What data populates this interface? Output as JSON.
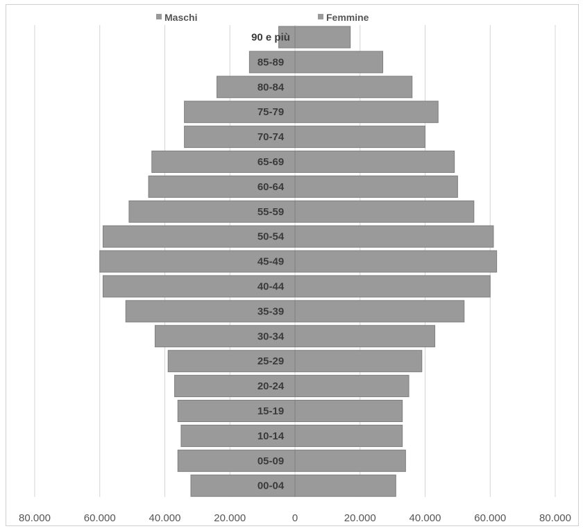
{
  "chart_data": {
    "type": "bar",
    "orientation": "horizontal",
    "variant": "population-pyramid",
    "categories": [
      "90 e più",
      "85-89",
      "80-84",
      "75-79",
      "70-74",
      "65-69",
      "60-64",
      "55-59",
      "50-54",
      "45-49",
      "40-44",
      "35-39",
      "30-34",
      "25-29",
      "20-24",
      "15-19",
      "10-14",
      "05-09",
      "00-04"
    ],
    "series": [
      {
        "name": "Maschi",
        "values": [
          5000,
          14000,
          24000,
          34000,
          34000,
          44000,
          45000,
          51000,
          59000,
          60000,
          59000,
          52000,
          43000,
          39000,
          37000,
          36000,
          35000,
          36000,
          32000
        ]
      },
      {
        "name": "Femmine",
        "values": [
          17000,
          27000,
          36000,
          44000,
          40000,
          49000,
          50000,
          55000,
          61000,
          62000,
          60000,
          52000,
          43000,
          39000,
          35000,
          33000,
          33000,
          34000,
          31000
        ]
      }
    ],
    "xlim": [
      -80000,
      80000
    ],
    "x_ticks": [
      -80000,
      -60000,
      -40000,
      -20000,
      0,
      20000,
      40000,
      60000,
      80000
    ],
    "x_tick_labels": [
      "80.000",
      "60.000",
      "40.000",
      "20.000",
      "0",
      "20.000",
      "40.000",
      "60.000",
      "80.000"
    ],
    "grid": "vertical",
    "legend_position": "top",
    "legend": [
      "Maschi",
      "Femmine"
    ],
    "colors": {
      "bar_fill": "#9a9a9a",
      "bar_stroke": "#7e7e7e",
      "grid": "#d4d4d4",
      "legend_swatch": "#9a9a9a"
    },
    "title": "",
    "xlabel": "",
    "ylabel": ""
  }
}
